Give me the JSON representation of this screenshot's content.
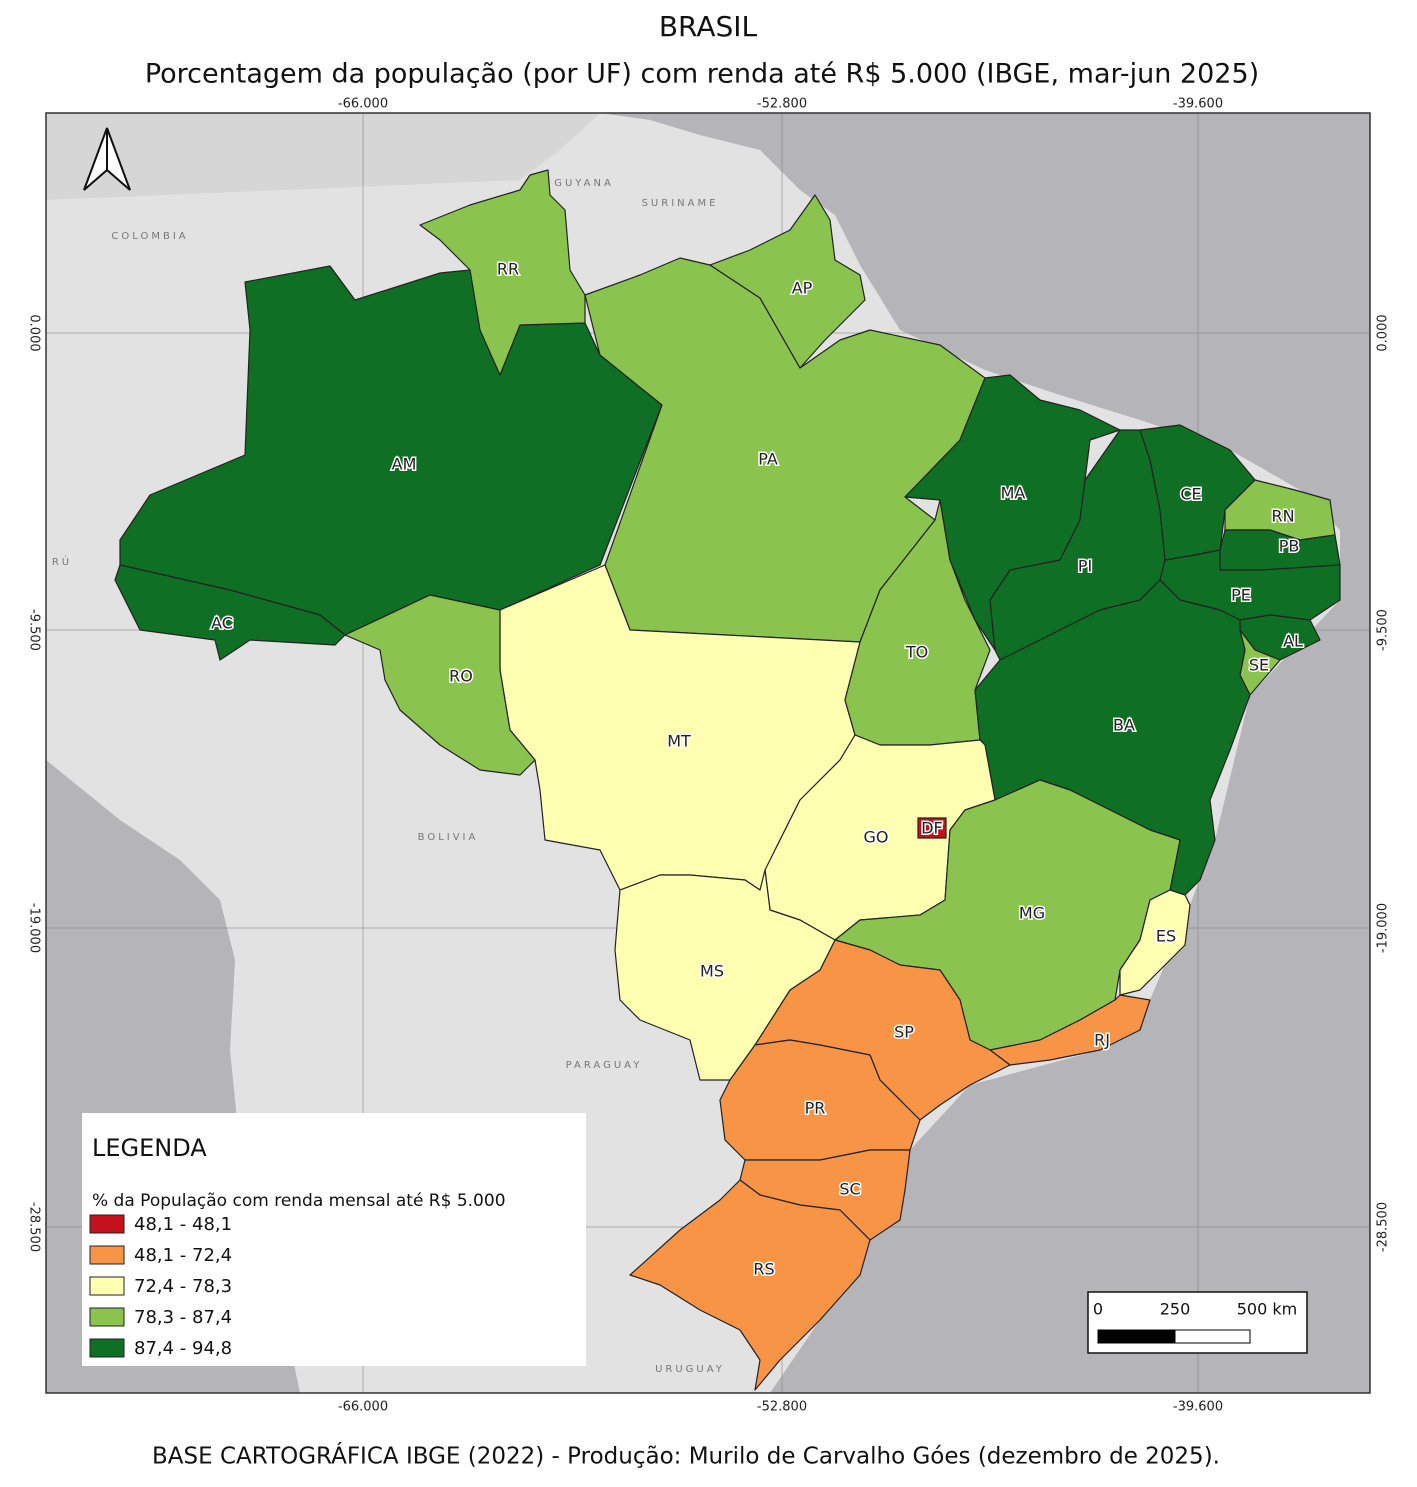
{
  "title": "BRASIL",
  "subtitle": "Porcentagem da população (por UF) com renda até R$ 5.000 (IBGE, mar-jun 2025)",
  "footer": "BASE CARTOGRÁFICA IBGE (2022) - Produção: Murilo de Carvalho Góes (dezembro de 2025).",
  "longitude_labels": [
    "-66.000",
    "-52.800",
    "-39.600"
  ],
  "latitude_labels": [
    "0.000",
    "-9.500",
    "-19.000",
    "-28.500"
  ],
  "countries": [
    "COLOMBIA",
    "GUYANA",
    "SURINAME",
    "RÚ",
    "BOLIVIA",
    "PARAGUAY",
    "URUGUAY"
  ],
  "legend": {
    "title": "LEGENDA",
    "subtitle": "% da População com renda mensal até R$ 5.000",
    "classes": [
      {
        "label": "48,1 - 48,1",
        "color": "#c4111b"
      },
      {
        "label": "48,1 - 72,4",
        "color": "#f89446"
      },
      {
        "label": "72,4 - 78,3",
        "color": "#ffffb2"
      },
      {
        "label": "78,3 - 87,4",
        "color": "#8bc34f"
      },
      {
        "label": "87,4 - 94,8",
        "color": "#0f6f24"
      }
    ]
  },
  "scale_bar": [
    "0",
    "250",
    "500 km"
  ],
  "states": [
    {
      "abbr": "AM",
      "class": 4
    },
    {
      "abbr": "AC",
      "class": 4
    },
    {
      "abbr": "RR",
      "class": 3
    },
    {
      "abbr": "PA",
      "class": 3
    },
    {
      "abbr": "AP",
      "class": 3
    },
    {
      "abbr": "MT",
      "class": 2
    },
    {
      "abbr": "RO",
      "class": 3
    },
    {
      "abbr": "TO",
      "class": 3
    },
    {
      "abbr": "MA",
      "class": 4
    },
    {
      "abbr": "PI",
      "class": 4
    },
    {
      "abbr": "CE",
      "class": 4
    },
    {
      "abbr": "RN",
      "class": 3
    },
    {
      "abbr": "PB",
      "class": 4
    },
    {
      "abbr": "PE",
      "class": 4
    },
    {
      "abbr": "AL",
      "class": 4
    },
    {
      "abbr": "SE",
      "class": 3
    },
    {
      "abbr": "BA",
      "class": 4
    },
    {
      "abbr": "GO",
      "class": 2
    },
    {
      "abbr": "DF",
      "class": 0
    },
    {
      "abbr": "MG",
      "class": 3
    },
    {
      "abbr": "ES",
      "class": 2
    },
    {
      "abbr": "RJ",
      "class": 1
    },
    {
      "abbr": "SP",
      "class": 1
    },
    {
      "abbr": "MS",
      "class": 2
    },
    {
      "abbr": "PR",
      "class": 1
    },
    {
      "abbr": "SC",
      "class": 1
    },
    {
      "abbr": "RS",
      "class": 1
    }
  ]
}
